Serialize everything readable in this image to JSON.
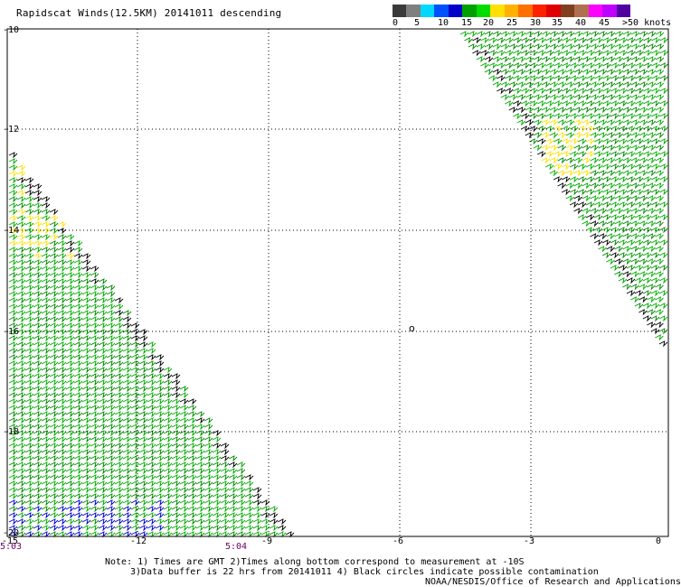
{
  "title": "Rapidscat Winds(12.5KM) 20141011 descending",
  "colorbar": {
    "labels": [
      "0",
      "5",
      "10",
      "15",
      "20",
      "25",
      "30",
      "35",
      "40",
      "45",
      ">50 knots"
    ],
    "colors": [
      "#3a3a3a",
      "#7f7f7f",
      "#00d8ff",
      "#0050ff",
      "#0000c8",
      "#00a000",
      "#00dc00",
      "#ffe000",
      "#ffb000",
      "#ff7000",
      "#ff2000",
      "#e00000",
      "#804020",
      "#b07050",
      "#ff00ff",
      "#c000ff",
      "#5000a0"
    ]
  },
  "axes": {
    "y_ticks": [
      "-10",
      "-12",
      "-14",
      "-16",
      "-18",
      "-20"
    ],
    "x_ticks": [
      "-15",
      "-12",
      "-9",
      "-6",
      "-3",
      "0"
    ]
  },
  "times": [
    "5:03",
    "5:04"
  ],
  "marker": "o",
  "notes": {
    "line1": "Note: 1) Times are GMT 2)Times along bottom correspond to measurement at -10S",
    "line2": "3)Data buffer is 22 hrs from 20141011 4) Black circles indicate possible contamination",
    "line3": "NOAA/NESDIS/Office of Research and Applications"
  },
  "wind_colors": {
    "green": "#00aa00",
    "dark_green": "#008800",
    "yellow": "#ffe000",
    "black": "#000000",
    "blue": "#0000c8"
  }
}
